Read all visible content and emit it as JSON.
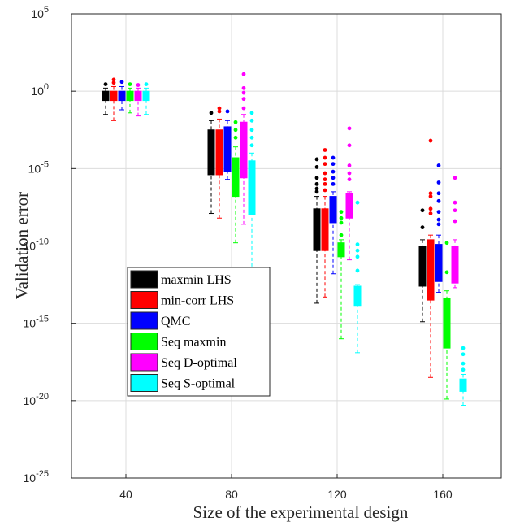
{
  "chart_data": {
    "type": "box",
    "title": "",
    "xlabel": "Size of the experimental design",
    "ylabel": "Validation error",
    "yscale": "log",
    "ylim_exp": [
      -25,
      5
    ],
    "yticks": [
      {
        "exp": 5,
        "base": "10",
        "sup": "5"
      },
      {
        "exp": 0,
        "base": "10",
        "sup": "0"
      },
      {
        "exp": -5,
        "base": "10",
        "sup": "-5"
      },
      {
        "exp": -10,
        "base": "10",
        "sup": "-10"
      },
      {
        "exp": -15,
        "base": "10",
        "sup": "-15"
      },
      {
        "exp": -20,
        "base": "10",
        "sup": "-20"
      },
      {
        "exp": -25,
        "base": "10",
        "sup": "-25"
      }
    ],
    "categories": [
      "40",
      "80",
      "120",
      "160"
    ],
    "legend_position": "lower-left",
    "series": [
      {
        "name": "maxmin LHS",
        "color": "#000000",
        "boxes": [
          {
            "whislo": -1.5,
            "q1": -0.6,
            "med": -0.3,
            "q3": 0.0,
            "whishi": 0.2,
            "fliers": [
              0.45
            ]
          },
          {
            "whislo": -7.9,
            "q1": -5.4,
            "med": -4.0,
            "q3": -2.5,
            "whishi": -1.9,
            "fliers": [
              -1.4
            ]
          },
          {
            "whislo": -13.7,
            "q1": -10.3,
            "med": -8.5,
            "q3": -7.6,
            "whishi": -6.8,
            "fliers": [
              -6.5,
              -6.3,
              -6.0,
              -5.6,
              -4.9,
              -4.4
            ]
          },
          {
            "whislo": -14.9,
            "q1": -12.6,
            "med": -10.5,
            "q3": -10.0,
            "whishi": -9.6,
            "fliers": [
              -8.8,
              -7.7
            ]
          }
        ]
      },
      {
        "name": "min-corr LHS",
        "color": "#ff0000",
        "boxes": [
          {
            "whislo": -1.9,
            "q1": -0.6,
            "med": -0.3,
            "q3": 0.0,
            "whishi": 0.3,
            "fliers": [
              0.55,
              0.75
            ]
          },
          {
            "whislo": -8.2,
            "q1": -5.4,
            "med": -4.0,
            "q3": -2.5,
            "whishi": -1.8,
            "fliers": [
              -1.3,
              -1.1
            ]
          },
          {
            "whislo": -13.3,
            "q1": -10.3,
            "med": -8.5,
            "q3": -7.6,
            "whishi": -6.8,
            "fliers": [
              -6.4,
              -6.0,
              -5.7,
              -5.3,
              -4.7,
              -4.3,
              -3.8
            ]
          },
          {
            "whislo": -18.5,
            "q1": -13.5,
            "med": -11.0,
            "q3": -9.6,
            "whishi": -9.3,
            "fliers": [
              -7.9,
              -7.6,
              -6.8,
              -6.6,
              -3.2
            ]
          }
        ]
      },
      {
        "name": "QMC",
        "color": "#0000ff",
        "boxes": [
          {
            "whislo": -1.2,
            "q1": -0.6,
            "med": -0.3,
            "q3": 0.0,
            "whishi": 0.3,
            "fliers": [
              0.6
            ]
          },
          {
            "whislo": -5.7,
            "q1": -5.2,
            "med": -3.5,
            "q3": -2.3,
            "whishi": -1.9,
            "fliers": [
              -1.3
            ]
          },
          {
            "whislo": -11.8,
            "q1": -8.5,
            "med": -7.5,
            "q3": -6.8,
            "whishi": -6.5,
            "fliers": [
              -6.0,
              -5.6,
              -5.2,
              -4.7,
              -4.3
            ]
          },
          {
            "whislo": -13.0,
            "q1": -12.3,
            "med": -10.0,
            "q3": -9.9,
            "whishi": -9.3,
            "fliers": [
              -8.6,
              -8.3,
              -7.8,
              -7.1,
              -6.6,
              -5.9,
              -4.8
            ]
          }
        ]
      },
      {
        "name": "Seq maxmin",
        "color": "#00ff00",
        "boxes": [
          {
            "whislo": -1.4,
            "q1": -0.6,
            "med": -0.3,
            "q3": 0.0,
            "whishi": 0.2,
            "fliers": [
              0.45
            ]
          },
          {
            "whislo": -9.8,
            "q1": -6.8,
            "med": -6.0,
            "q3": -4.3,
            "whishi": -3.6,
            "fliers": [
              -3.0,
              -2.5,
              -2.0
            ]
          },
          {
            "whislo": -16.0,
            "q1": -10.7,
            "med": -10.0,
            "q3": -9.8,
            "whishi": -9.6,
            "fliers": [
              -9.3,
              -8.5,
              -8.2,
              -7.8
            ]
          },
          {
            "whislo": -19.9,
            "q1": -16.6,
            "med": -15.0,
            "q3": -13.4,
            "whishi": -12.9,
            "fliers": [
              -11.7,
              -9.8
            ]
          }
        ]
      },
      {
        "name": "Seq D-optimal",
        "color": "#ff00ff",
        "boxes": [
          {
            "whislo": -1.6,
            "q1": -0.6,
            "med": -0.3,
            "q3": 0.0,
            "whishi": 0.2,
            "fliers": [
              0.4
            ]
          },
          {
            "whislo": -8.6,
            "q1": -5.6,
            "med": -3.8,
            "q3": -2.0,
            "whishi": -1.5,
            "fliers": [
              -1.1,
              -0.5,
              -0.1,
              0.2,
              1.1
            ]
          },
          {
            "whislo": -10.9,
            "q1": -8.2,
            "med": -7.5,
            "q3": -6.6,
            "whishi": -6.5,
            "fliers": [
              -5.7,
              -5.3,
              -4.8,
              -3.5,
              -2.4
            ]
          },
          {
            "whislo": -12.7,
            "q1": -12.4,
            "med": -10.5,
            "q3": -10.0,
            "whishi": -9.6,
            "fliers": [
              -8.4,
              -7.7,
              -7.2,
              -5.6
            ]
          }
        ]
      },
      {
        "name": "Seq S-optimal",
        "color": "#00ffff",
        "boxes": [
          {
            "whislo": -1.5,
            "q1": -0.6,
            "med": -0.3,
            "q3": 0.0,
            "whishi": 0.2,
            "fliers": [
              0.45
            ]
          },
          {
            "whislo": -11.7,
            "q1": -8.0,
            "med": -6.5,
            "q3": -4.5,
            "whishi": -4.0,
            "fliers": [
              -3.5,
              -3.0,
              -2.5,
              -1.9,
              -1.4
            ]
          },
          {
            "whislo": -16.9,
            "q1": -13.9,
            "med": -13.3,
            "q3": -12.6,
            "whishi": -12.5,
            "fliers": [
              -11.6,
              -10.7,
              -10.3,
              -9.9,
              -7.2
            ]
          },
          {
            "whislo": -20.3,
            "q1": -19.4,
            "med": -19.0,
            "q3": -18.6,
            "whishi": -18.3,
            "fliers": [
              -18.0,
              -17.6,
              -17.0,
              -16.6
            ]
          }
        ]
      }
    ]
  }
}
